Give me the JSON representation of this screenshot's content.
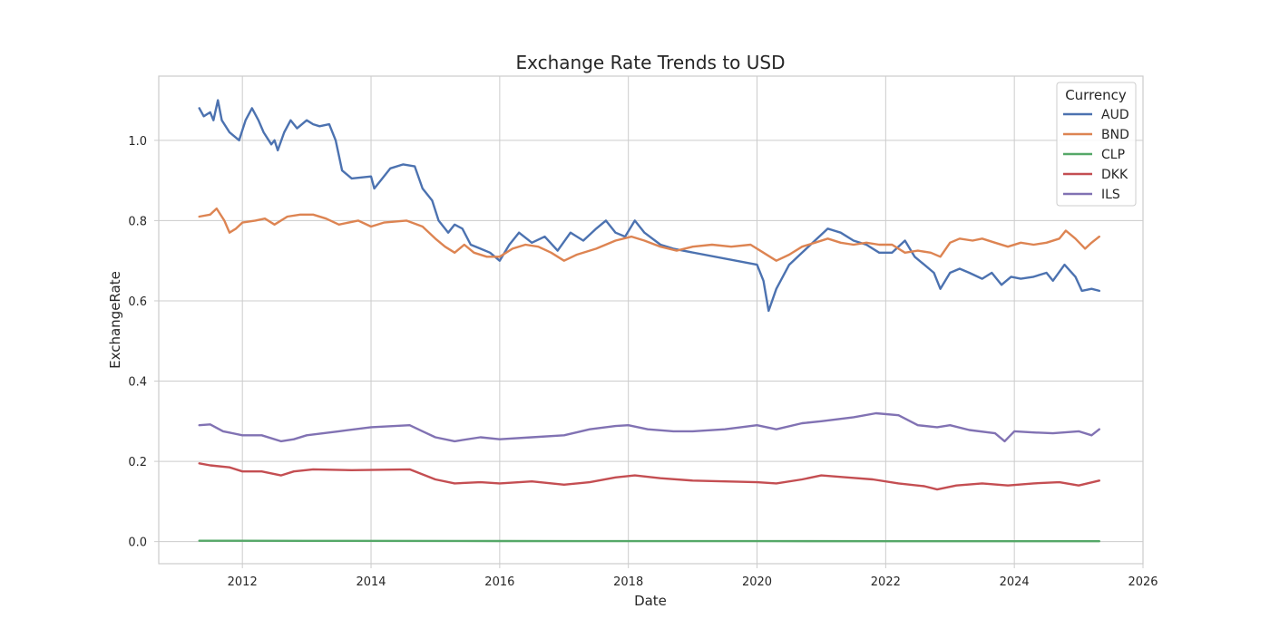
{
  "chart_data": {
    "type": "line",
    "title": "Exchange Rate Trends to USD",
    "xlabel": "Date",
    "ylabel": "ExchangeRate",
    "xlim": [
      2010.7,
      2026.0
    ],
    "ylim": [
      -0.055,
      1.16
    ],
    "x_ticks": [
      2012,
      2014,
      2016,
      2018,
      2020,
      2022,
      2024,
      2026
    ],
    "x_tick_labels": [
      "2012",
      "2014",
      "2016",
      "2018",
      "2020",
      "2022",
      "2024",
      "2026"
    ],
    "y_ticks": [
      0.0,
      0.2,
      0.4,
      0.6,
      0.8,
      1.0
    ],
    "y_tick_labels": [
      "0.0",
      "0.2",
      "0.4",
      "0.6",
      "0.8",
      "1.0"
    ],
    "grid": true,
    "legend": {
      "title": "Currency",
      "placement": "top-right"
    },
    "series": [
      {
        "name": "AUD",
        "color": "#4c72b0",
        "points": [
          [
            2011.33,
            1.08
          ],
          [
            2011.4,
            1.06
          ],
          [
            2011.5,
            1.07
          ],
          [
            2011.55,
            1.05
          ],
          [
            2011.62,
            1.1
          ],
          [
            2011.68,
            1.05
          ],
          [
            2011.8,
            1.02
          ],
          [
            2011.95,
            1.0
          ],
          [
            2012.05,
            1.05
          ],
          [
            2012.15,
            1.08
          ],
          [
            2012.25,
            1.05
          ],
          [
            2012.33,
            1.02
          ],
          [
            2012.45,
            0.99
          ],
          [
            2012.5,
            1.0
          ],
          [
            2012.55,
            0.975
          ],
          [
            2012.65,
            1.02
          ],
          [
            2012.75,
            1.05
          ],
          [
            2012.85,
            1.03
          ],
          [
            2013.0,
            1.05
          ],
          [
            2013.1,
            1.04
          ],
          [
            2013.2,
            1.035
          ],
          [
            2013.35,
            1.04
          ],
          [
            2013.45,
            1.0
          ],
          [
            2013.55,
            0.925
          ],
          [
            2013.7,
            0.905
          ],
          [
            2014.0,
            0.91
          ],
          [
            2014.05,
            0.88
          ],
          [
            2014.15,
            0.9
          ],
          [
            2014.3,
            0.93
          ],
          [
            2014.5,
            0.94
          ],
          [
            2014.68,
            0.935
          ],
          [
            2014.8,
            0.88
          ],
          [
            2014.95,
            0.85
          ],
          [
            2015.05,
            0.8
          ],
          [
            2015.2,
            0.77
          ],
          [
            2015.3,
            0.79
          ],
          [
            2015.42,
            0.78
          ],
          [
            2015.55,
            0.74
          ],
          [
            2015.7,
            0.73
          ],
          [
            2015.85,
            0.72
          ],
          [
            2016.0,
            0.7
          ],
          [
            2016.15,
            0.74
          ],
          [
            2016.3,
            0.77
          ],
          [
            2016.5,
            0.745
          ],
          [
            2016.7,
            0.76
          ],
          [
            2016.9,
            0.725
          ],
          [
            2017.1,
            0.77
          ],
          [
            2017.3,
            0.75
          ],
          [
            2017.5,
            0.78
          ],
          [
            2017.65,
            0.8
          ],
          [
            2017.8,
            0.77
          ],
          [
            2017.95,
            0.76
          ],
          [
            2018.1,
            0.8
          ],
          [
            2018.25,
            0.77
          ],
          [
            2018.5,
            0.74
          ],
          [
            2018.7,
            0.73
          ],
          [
            2018.85,
            0.725
          ],
          [
            2020.0,
            0.69
          ],
          [
            2020.1,
            0.65
          ],
          [
            2020.18,
            0.575
          ],
          [
            2020.3,
            0.63
          ],
          [
            2020.5,
            0.69
          ],
          [
            2020.7,
            0.72
          ],
          [
            2020.9,
            0.75
          ],
          [
            2021.1,
            0.78
          ],
          [
            2021.3,
            0.77
          ],
          [
            2021.5,
            0.75
          ],
          [
            2021.7,
            0.74
          ],
          [
            2021.9,
            0.72
          ],
          [
            2022.1,
            0.72
          ],
          [
            2022.3,
            0.75
          ],
          [
            2022.45,
            0.71
          ],
          [
            2022.6,
            0.69
          ],
          [
            2022.75,
            0.67
          ],
          [
            2022.85,
            0.63
          ],
          [
            2023.0,
            0.67
          ],
          [
            2023.15,
            0.68
          ],
          [
            2023.3,
            0.67
          ],
          [
            2023.5,
            0.655
          ],
          [
            2023.65,
            0.67
          ],
          [
            2023.8,
            0.64
          ],
          [
            2023.95,
            0.66
          ],
          [
            2024.1,
            0.655
          ],
          [
            2024.3,
            0.66
          ],
          [
            2024.5,
            0.67
          ],
          [
            2024.6,
            0.65
          ],
          [
            2024.78,
            0.69
          ],
          [
            2024.95,
            0.66
          ],
          [
            2025.05,
            0.625
          ],
          [
            2025.2,
            0.63
          ],
          [
            2025.32,
            0.625
          ]
        ]
      },
      {
        "name": "BND",
        "color": "#dd8452",
        "points": [
          [
            2011.33,
            0.81
          ],
          [
            2011.5,
            0.815
          ],
          [
            2011.6,
            0.83
          ],
          [
            2011.72,
            0.8
          ],
          [
            2011.8,
            0.77
          ],
          [
            2011.9,
            0.78
          ],
          [
            2012.0,
            0.795
          ],
          [
            2012.2,
            0.8
          ],
          [
            2012.35,
            0.805
          ],
          [
            2012.5,
            0.79
          ],
          [
            2012.7,
            0.81
          ],
          [
            2012.9,
            0.815
          ],
          [
            2013.1,
            0.815
          ],
          [
            2013.3,
            0.805
          ],
          [
            2013.5,
            0.79
          ],
          [
            2013.8,
            0.8
          ],
          [
            2014.0,
            0.785
          ],
          [
            2014.2,
            0.795
          ],
          [
            2014.55,
            0.8
          ],
          [
            2014.8,
            0.785
          ],
          [
            2015.0,
            0.755
          ],
          [
            2015.15,
            0.735
          ],
          [
            2015.3,
            0.72
          ],
          [
            2015.45,
            0.74
          ],
          [
            2015.6,
            0.72
          ],
          [
            2015.8,
            0.71
          ],
          [
            2016.0,
            0.71
          ],
          [
            2016.2,
            0.73
          ],
          [
            2016.4,
            0.74
          ],
          [
            2016.6,
            0.735
          ],
          [
            2016.8,
            0.72
          ],
          [
            2017.0,
            0.7
          ],
          [
            2017.2,
            0.715
          ],
          [
            2017.5,
            0.73
          ],
          [
            2017.8,
            0.75
          ],
          [
            2018.05,
            0.76
          ],
          [
            2018.25,
            0.75
          ],
          [
            2018.5,
            0.735
          ],
          [
            2018.75,
            0.725
          ],
          [
            2019.0,
            0.735
          ],
          [
            2019.3,
            0.74
          ],
          [
            2019.6,
            0.735
          ],
          [
            2019.9,
            0.74
          ],
          [
            2020.1,
            0.72
          ],
          [
            2020.3,
            0.7
          ],
          [
            2020.5,
            0.715
          ],
          [
            2020.7,
            0.735
          ],
          [
            2020.9,
            0.745
          ],
          [
            2021.1,
            0.755
          ],
          [
            2021.3,
            0.745
          ],
          [
            2021.5,
            0.74
          ],
          [
            2021.7,
            0.745
          ],
          [
            2021.9,
            0.74
          ],
          [
            2022.1,
            0.74
          ],
          [
            2022.3,
            0.72
          ],
          [
            2022.5,
            0.725
          ],
          [
            2022.7,
            0.72
          ],
          [
            2022.85,
            0.71
          ],
          [
            2023.0,
            0.745
          ],
          [
            2023.15,
            0.755
          ],
          [
            2023.35,
            0.75
          ],
          [
            2023.5,
            0.755
          ],
          [
            2023.7,
            0.745
          ],
          [
            2023.9,
            0.735
          ],
          [
            2024.1,
            0.745
          ],
          [
            2024.3,
            0.74
          ],
          [
            2024.5,
            0.745
          ],
          [
            2024.7,
            0.755
          ],
          [
            2024.8,
            0.775
          ],
          [
            2024.95,
            0.755
          ],
          [
            2025.1,
            0.73
          ],
          [
            2025.2,
            0.745
          ],
          [
            2025.32,
            0.76
          ]
        ]
      },
      {
        "name": "CLP",
        "color": "#55a868",
        "points": [
          [
            2011.33,
            0.0021
          ],
          [
            2013.0,
            0.002
          ],
          [
            2016.0,
            0.0015
          ],
          [
            2020.0,
            0.0012
          ],
          [
            2023.0,
            0.0011
          ],
          [
            2025.32,
            0.0011
          ]
        ]
      },
      {
        "name": "DKK",
        "color": "#c44e52",
        "points": [
          [
            2011.33,
            0.195
          ],
          [
            2011.5,
            0.19
          ],
          [
            2011.8,
            0.185
          ],
          [
            2012.0,
            0.175
          ],
          [
            2012.3,
            0.175
          ],
          [
            2012.6,
            0.165
          ],
          [
            2012.8,
            0.175
          ],
          [
            2013.1,
            0.18
          ],
          [
            2013.7,
            0.178
          ],
          [
            2014.6,
            0.18
          ],
          [
            2015.0,
            0.155
          ],
          [
            2015.3,
            0.145
          ],
          [
            2015.7,
            0.148
          ],
          [
            2016.0,
            0.145
          ],
          [
            2016.5,
            0.15
          ],
          [
            2017.0,
            0.142
          ],
          [
            2017.4,
            0.148
          ],
          [
            2017.8,
            0.16
          ],
          [
            2018.1,
            0.165
          ],
          [
            2018.5,
            0.158
          ],
          [
            2019.0,
            0.152
          ],
          [
            2019.5,
            0.15
          ],
          [
            2020.0,
            0.148
          ],
          [
            2020.3,
            0.145
          ],
          [
            2020.7,
            0.155
          ],
          [
            2021.0,
            0.165
          ],
          [
            2021.4,
            0.16
          ],
          [
            2021.8,
            0.155
          ],
          [
            2022.2,
            0.145
          ],
          [
            2022.6,
            0.138
          ],
          [
            2022.8,
            0.13
          ],
          [
            2023.1,
            0.14
          ],
          [
            2023.5,
            0.145
          ],
          [
            2023.9,
            0.14
          ],
          [
            2024.3,
            0.145
          ],
          [
            2024.7,
            0.148
          ],
          [
            2025.0,
            0.14
          ],
          [
            2025.32,
            0.152
          ]
        ]
      },
      {
        "name": "ILS",
        "color": "#8172b3",
        "points": [
          [
            2011.33,
            0.29
          ],
          [
            2011.5,
            0.292
          ],
          [
            2011.7,
            0.275
          ],
          [
            2012.0,
            0.265
          ],
          [
            2012.3,
            0.265
          ],
          [
            2012.6,
            0.25
          ],
          [
            2012.8,
            0.255
          ],
          [
            2013.0,
            0.265
          ],
          [
            2013.5,
            0.275
          ],
          [
            2014.0,
            0.285
          ],
          [
            2014.6,
            0.29
          ],
          [
            2014.8,
            0.275
          ],
          [
            2015.0,
            0.26
          ],
          [
            2015.3,
            0.25
          ],
          [
            2015.7,
            0.26
          ],
          [
            2016.0,
            0.255
          ],
          [
            2016.5,
            0.26
          ],
          [
            2017.0,
            0.265
          ],
          [
            2017.4,
            0.28
          ],
          [
            2017.8,
            0.288
          ],
          [
            2018.0,
            0.29
          ],
          [
            2018.3,
            0.28
          ],
          [
            2018.7,
            0.275
          ],
          [
            2019.0,
            0.275
          ],
          [
            2019.5,
            0.28
          ],
          [
            2020.0,
            0.29
          ],
          [
            2020.3,
            0.28
          ],
          [
            2020.7,
            0.295
          ],
          [
            2021.0,
            0.3
          ],
          [
            2021.5,
            0.31
          ],
          [
            2021.85,
            0.32
          ],
          [
            2022.2,
            0.315
          ],
          [
            2022.5,
            0.29
          ],
          [
            2022.8,
            0.285
          ],
          [
            2023.0,
            0.29
          ],
          [
            2023.3,
            0.278
          ],
          [
            2023.7,
            0.27
          ],
          [
            2023.85,
            0.25
          ],
          [
            2024.0,
            0.275
          ],
          [
            2024.3,
            0.272
          ],
          [
            2024.6,
            0.27
          ],
          [
            2025.0,
            0.275
          ],
          [
            2025.2,
            0.265
          ],
          [
            2025.32,
            0.28
          ]
        ]
      }
    ]
  }
}
